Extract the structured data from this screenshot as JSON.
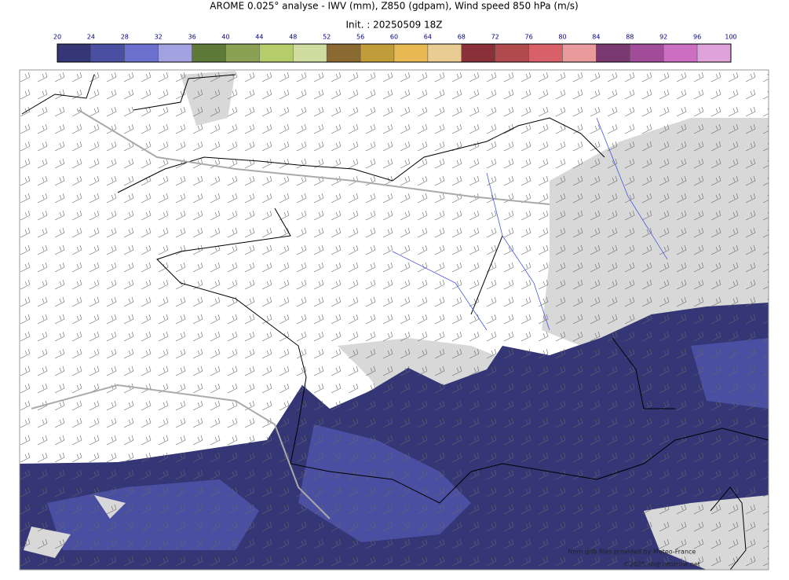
{
  "header": {
    "title": "AROME 0.025° analyse - IWV (mm), Z850 (gdpam), Wind speed 850 hPa (m/s)",
    "subtitle": "Init. : 20250509 18Z"
  },
  "colorbar": {
    "ticks": [
      20,
      24,
      28,
      32,
      36,
      40,
      44,
      48,
      52,
      56,
      60,
      64,
      68,
      72,
      76,
      80,
      84,
      88,
      92,
      96,
      100
    ],
    "colors": [
      "#343676",
      "#4b4fa2",
      "#6b6fce",
      "#a2a2e0",
      "#5f7a38",
      "#8aa052",
      "#b4cc6a",
      "#d0dca0",
      "#8a6a30",
      "#c09c3a",
      "#e8b852",
      "#e8cc92",
      "#8a3038",
      "#b04a4c",
      "#d86068",
      "#e89a9c",
      "#7a3870",
      "#a04c98",
      "#cc6ec2",
      "#e0a2da"
    ]
  },
  "credits": {
    "source": "from grib files provided by Meteo-France",
    "copyright": "©2025 sb@infozone.net"
  }
}
